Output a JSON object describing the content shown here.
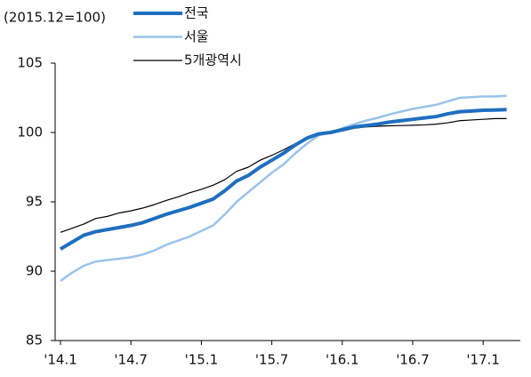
{
  "chart_data": {
    "type": "line",
    "y_unit_label": "(2015.12=100)",
    "categories": [
      "'14.1",
      null,
      null,
      null,
      null,
      null,
      "'14.7",
      null,
      null,
      null,
      null,
      null,
      "'15.1",
      null,
      null,
      null,
      null,
      null,
      "'15.7",
      null,
      null,
      null,
      null,
      null,
      "'16.1",
      null,
      null,
      null,
      null,
      null,
      "'16.7",
      null,
      null,
      null,
      null,
      null,
      "'17.1",
      null,
      null
    ],
    "series": [
      {
        "name": "전국",
        "color": "#1f6fc0",
        "values": [
          91.6,
          92.1,
          92.6,
          92.85,
          93.0,
          93.15,
          93.3,
          93.5,
          93.8,
          94.1,
          94.35,
          94.6,
          94.9,
          95.2,
          95.8,
          96.5,
          96.9,
          97.5,
          98.0,
          98.5,
          99.1,
          99.6,
          99.9,
          100.0,
          100.2,
          100.4,
          100.5,
          100.6,
          100.75,
          100.85,
          100.95,
          101.05,
          101.15,
          101.35,
          101.5,
          101.55,
          101.6,
          101.62,
          101.65
        ]
      },
      {
        "name": "서울",
        "color": "#9ac3ec",
        "values": [
          89.3,
          89.9,
          90.4,
          90.7,
          90.8,
          90.9,
          91.0,
          91.2,
          91.5,
          91.9,
          92.2,
          92.5,
          92.9,
          93.3,
          94.1,
          95.0,
          95.7,
          96.4,
          97.1,
          97.7,
          98.5,
          99.2,
          99.8,
          100.0,
          100.3,
          100.6,
          100.85,
          101.05,
          101.3,
          101.5,
          101.7,
          101.85,
          102.0,
          102.25,
          102.5,
          102.55,
          102.6,
          102.6,
          102.65
        ]
      },
      {
        "name": "5개광역시",
        "color": "#000000",
        "values": [
          92.8,
          93.1,
          93.4,
          93.8,
          93.95,
          94.2,
          94.35,
          94.55,
          94.8,
          95.1,
          95.35,
          95.65,
          95.9,
          96.2,
          96.6,
          97.2,
          97.5,
          98.0,
          98.35,
          98.75,
          99.2,
          99.55,
          99.85,
          100.0,
          100.1,
          100.3,
          100.4,
          100.45,
          100.48,
          100.5,
          100.52,
          100.55,
          100.6,
          100.7,
          100.85,
          100.9,
          100.95,
          101.0,
          101.0
        ]
      }
    ],
    "ylim": [
      85,
      105
    ],
    "yticks": [
      85,
      90,
      95,
      100,
      105
    ]
  }
}
